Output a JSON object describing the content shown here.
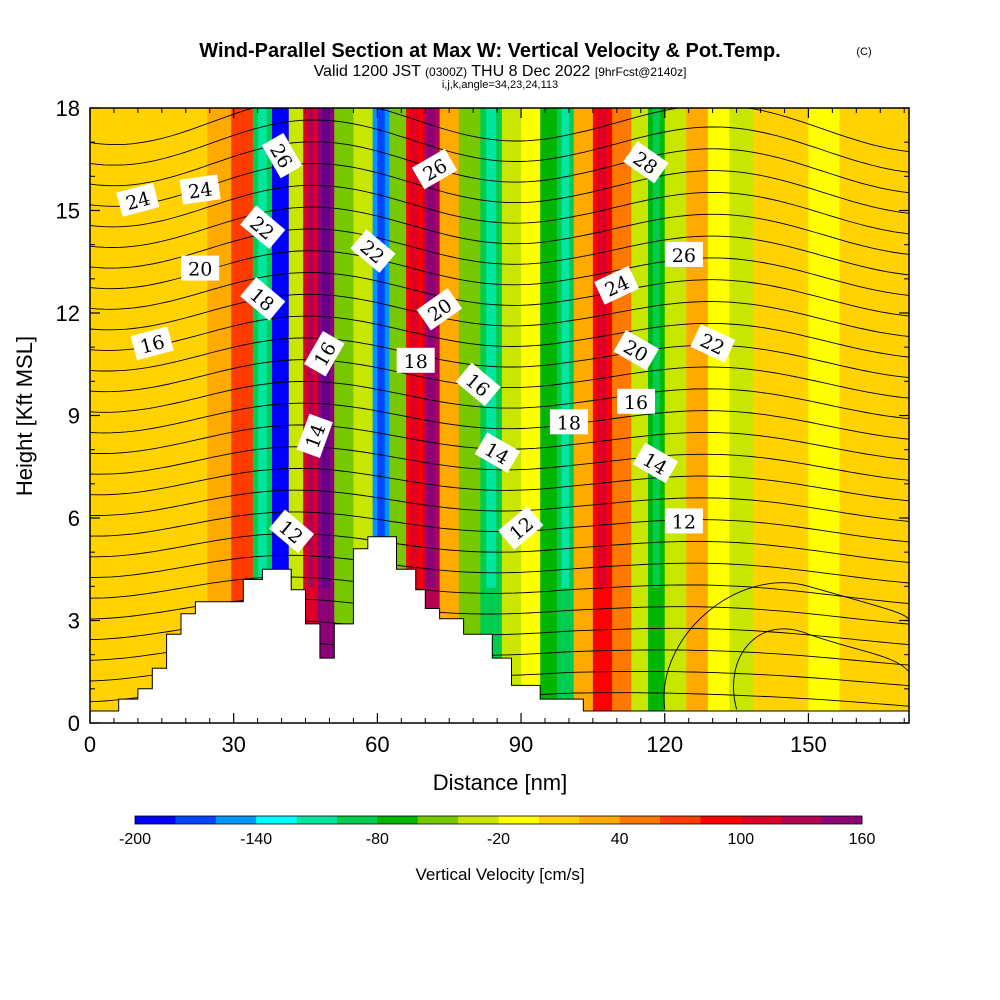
{
  "title": {
    "main": "Wind-Parallel Section at Max W: Vertical Velocity & Pot.Temp.",
    "copyright": "(C)",
    "valid_prefix": "Valid 1200 JST",
    "valid_utc": "(0300Z)",
    "valid_suffix": "THU 8 Dec 2022",
    "forecast": "[9hrFcst@2140z]",
    "indices": "i,j,k,angle=34,23,24,113"
  },
  "chart_data": {
    "type": "heatmap",
    "xlabel": "Distance [nm]",
    "ylabel": "Height [Kft MSL]",
    "xlim": [
      0,
      171
    ],
    "ylim": [
      0,
      18
    ],
    "x_ticks": [
      "0",
      "30",
      "60",
      "90",
      "120",
      "150"
    ],
    "x_tick_values": [
      0,
      30,
      60,
      90,
      120,
      150
    ],
    "y_ticks": [
      "0",
      "3",
      "6",
      "9",
      "12",
      "15",
      "18"
    ],
    "y_tick_values": [
      0,
      3,
      6,
      9,
      12,
      15,
      18
    ],
    "background_value": 0,
    "vertical_velocity_columns_cm_s": [
      {
        "x": 3,
        "w": 0
      },
      {
        "x": 10,
        "w": 5
      },
      {
        "x": 17,
        "w": 15
      },
      {
        "x": 22,
        "w": 10
      },
      {
        "x": 27,
        "w": 30
      },
      {
        "x": 32,
        "w": 60
      },
      {
        "x": 36,
        "w": -100
      },
      {
        "x": 40,
        "w": -190
      },
      {
        "x": 43,
        "w": -40
      },
      {
        "x": 46,
        "w": 100
      },
      {
        "x": 49,
        "w": 140
      },
      {
        "x": 53,
        "w": -60
      },
      {
        "x": 57,
        "w": -40
      },
      {
        "x": 61,
        "w": -150
      },
      {
        "x": 64,
        "w": -60
      },
      {
        "x": 68,
        "w": 80
      },
      {
        "x": 71,
        "w": 120
      },
      {
        "x": 75,
        "w": 20
      },
      {
        "x": 79,
        "w": -60
      },
      {
        "x": 84,
        "w": -95
      },
      {
        "x": 88,
        "w": -40
      },
      {
        "x": 92,
        "w": -20
      },
      {
        "x": 96,
        "w": -75
      },
      {
        "x": 99,
        "w": -90
      },
      {
        "x": 103,
        "w": 20
      },
      {
        "x": 107,
        "w": 80
      },
      {
        "x": 111,
        "w": 50
      },
      {
        "x": 115,
        "w": -40
      },
      {
        "x": 118,
        "w": -80
      },
      {
        "x": 122,
        "w": -30
      },
      {
        "x": 127,
        "w": 20
      },
      {
        "x": 131,
        "w": -10
      },
      {
        "x": 136,
        "w": -30
      },
      {
        "x": 141,
        "w": 10
      },
      {
        "x": 147,
        "w": 5
      },
      {
        "x": 153,
        "w": -20
      },
      {
        "x": 160,
        "w": 10
      },
      {
        "x": 167,
        "w": 5
      }
    ],
    "terrain_kft": [
      [
        0,
        0.35
      ],
      [
        6,
        0.35
      ],
      [
        6,
        0.7
      ],
      [
        10,
        0.7
      ],
      [
        10,
        1.0
      ],
      [
        13,
        1.0
      ],
      [
        13,
        1.6
      ],
      [
        16,
        1.6
      ],
      [
        16,
        2.6
      ],
      [
        19,
        2.6
      ],
      [
        19,
        3.2
      ],
      [
        22,
        3.2
      ],
      [
        22,
        3.55
      ],
      [
        32,
        3.55
      ],
      [
        32,
        4.2
      ],
      [
        36,
        4.2
      ],
      [
        36,
        4.5
      ],
      [
        42,
        4.5
      ],
      [
        42,
        3.9
      ],
      [
        45,
        3.9
      ],
      [
        45,
        2.9
      ],
      [
        48,
        2.9
      ],
      [
        48,
        1.9
      ],
      [
        51,
        1.9
      ],
      [
        51,
        2.9
      ],
      [
        55,
        2.9
      ],
      [
        55,
        5.1
      ],
      [
        58,
        5.1
      ],
      [
        58,
        5.45
      ],
      [
        64,
        5.45
      ],
      [
        64,
        4.5
      ],
      [
        68,
        4.5
      ],
      [
        68,
        3.9
      ],
      [
        70,
        3.9
      ],
      [
        70,
        3.35
      ],
      [
        73,
        3.35
      ],
      [
        73,
        3.05
      ],
      [
        78,
        3.05
      ],
      [
        78,
        2.6
      ],
      [
        84,
        2.6
      ],
      [
        84,
        1.9
      ],
      [
        88,
        1.9
      ],
      [
        88,
        1.1
      ],
      [
        94,
        1.1
      ],
      [
        94,
        0.7
      ],
      [
        103,
        0.7
      ],
      [
        103,
        0.35
      ],
      [
        171,
        0.35
      ]
    ],
    "contour_labels": [
      {
        "text": "24",
        "x": 10,
        "y": 15.3,
        "angle": -15
      },
      {
        "text": "24",
        "x": 23,
        "y": 15.6,
        "angle": -8
      },
      {
        "text": "26",
        "x": 40,
        "y": 16.6,
        "angle": 60
      },
      {
        "text": "22",
        "x": 36,
        "y": 14.5,
        "angle": 40
      },
      {
        "text": "20",
        "x": 23,
        "y": 13.3,
        "angle": 0
      },
      {
        "text": "18",
        "x": 36,
        "y": 12.4,
        "angle": 40
      },
      {
        "text": "16",
        "x": 13,
        "y": 11.1,
        "angle": -15
      },
      {
        "text": "16",
        "x": 49,
        "y": 10.8,
        "angle": -60
      },
      {
        "text": "14",
        "x": 47,
        "y": 8.4,
        "angle": -70
      },
      {
        "text": "12",
        "x": 42,
        "y": 5.6,
        "angle": 40
      },
      {
        "text": "26",
        "x": 72,
        "y": 16.2,
        "angle": -30
      },
      {
        "text": "22",
        "x": 59,
        "y": 13.8,
        "angle": 40
      },
      {
        "text": "20",
        "x": 73,
        "y": 12.1,
        "angle": -35
      },
      {
        "text": "18",
        "x": 68,
        "y": 10.6,
        "angle": 0
      },
      {
        "text": "16",
        "x": 81,
        "y": 9.9,
        "angle": 40
      },
      {
        "text": "14",
        "x": 85,
        "y": 7.9,
        "angle": 30
      },
      {
        "text": "12",
        "x": 90,
        "y": 5.7,
        "angle": -40
      },
      {
        "text": "18",
        "x": 100,
        "y": 8.8,
        "angle": 0
      },
      {
        "text": "28",
        "x": 116,
        "y": 16.4,
        "angle": 35
      },
      {
        "text": "24",
        "x": 110,
        "y": 12.8,
        "angle": -25
      },
      {
        "text": "26",
        "x": 124,
        "y": 13.7,
        "angle": 0
      },
      {
        "text": "22",
        "x": 130,
        "y": 11.1,
        "angle": 25
      },
      {
        "text": "20",
        "x": 114,
        "y": 10.9,
        "angle": 30
      },
      {
        "text": "16",
        "x": 114,
        "y": 9.4,
        "angle": 0
      },
      {
        "text": "14",
        "x": 118,
        "y": 7.6,
        "angle": 30
      },
      {
        "text": "12",
        "x": 124,
        "y": 5.9,
        "angle": 0
      }
    ],
    "colorbar": {
      "title": "Vertical Velocity [cm/s]",
      "levels": [
        -200,
        -180,
        -160,
        -140,
        -120,
        -100,
        -80,
        -60,
        -40,
        -20,
        0,
        20,
        40,
        60,
        80,
        100,
        120,
        140,
        160
      ],
      "labels": [
        "-200",
        "-140",
        "-80",
        "-20",
        "40",
        "100",
        "160"
      ],
      "label_values": [
        -200,
        -140,
        -80,
        -20,
        40,
        100,
        160
      ],
      "colors": [
        "#0000ff",
        "#0046ff",
        "#0096ff",
        "#00ffff",
        "#00e6a0",
        "#00cd50",
        "#00b400",
        "#78c800",
        "#c8e600",
        "#ffff00",
        "#ffd200",
        "#ffaa00",
        "#ff7800",
        "#ff3c00",
        "#ff0000",
        "#dc0028",
        "#b40050",
        "#8c0078",
        "#64008c"
      ]
    },
    "colors": {
      "background_fill": "#ffd200",
      "terrain": "#ffffff",
      "contour": "#000000"
    }
  }
}
